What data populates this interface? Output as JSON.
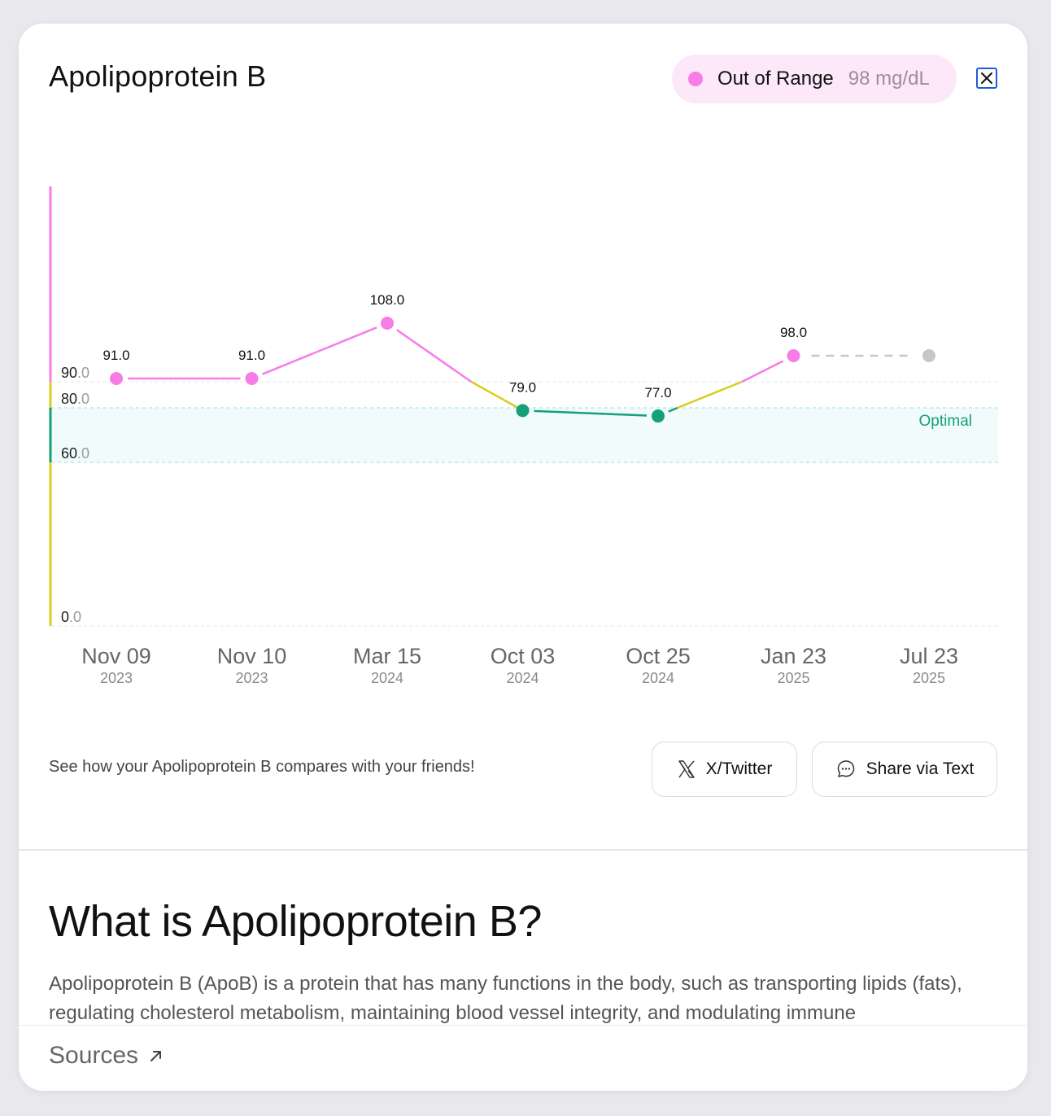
{
  "header": {
    "title": "Apolipoprotein B",
    "status_label": "Out of Range",
    "status_value": "98 mg/dL",
    "close_icon": "close-icon"
  },
  "colors": {
    "out_of_range": "#f77ce8",
    "borderline": "#d6cf1e",
    "optimal": "#13a07a",
    "optimal_band": "#f1fbfb",
    "projection": "#c7c7c7"
  },
  "chart_data": {
    "type": "line",
    "y_ticks": [
      {
        "int": "90",
        "dec": ".0",
        "value": 90
      },
      {
        "int": "80",
        "dec": ".0",
        "value": 80
      },
      {
        "int": "60",
        "dec": ".0",
        "value": 60
      },
      {
        "int": "0",
        "dec": ".0",
        "value": 0
      }
    ],
    "ylim": [
      0,
      150
    ],
    "optimal_range": [
      60,
      80
    ],
    "optimal_label": "Optimal",
    "points": [
      {
        "date": "Nov 09",
        "year": "2023",
        "value": 91.0,
        "label": "91.0",
        "status": "out"
      },
      {
        "date": "Nov 10",
        "year": "2023",
        "value": 91.0,
        "label": "91.0",
        "status": "out"
      },
      {
        "date": "Mar 15",
        "year": "2024",
        "value": 108.0,
        "label": "108.0",
        "status": "out"
      },
      {
        "date": "Oct 03",
        "year": "2024",
        "value": 79.0,
        "label": "79.0",
        "status": "optimal"
      },
      {
        "date": "Oct 25",
        "year": "2024",
        "value": 77.0,
        "label": "77.0",
        "status": "optimal"
      },
      {
        "date": "Jan 23",
        "year": "2025",
        "value": 98.0,
        "label": "98.0",
        "status": "out"
      },
      {
        "date": "Jul 23",
        "year": "2025",
        "value": 98.0,
        "label": "",
        "status": "projected"
      }
    ]
  },
  "share": {
    "prompt": "See how your Apolipoprotein B compares with your friends!",
    "twitter_label": "X/Twitter",
    "text_label": "Share via Text"
  },
  "info": {
    "heading": "What is Apolipoprotein B?",
    "description": "Apolipoprotein B (ApoB) is a protein that has many functions in the body, such as transporting lipids (fats), regulating cholesterol metabolism, maintaining blood vessel integrity, and modulating immune",
    "sources_label": "Sources"
  }
}
